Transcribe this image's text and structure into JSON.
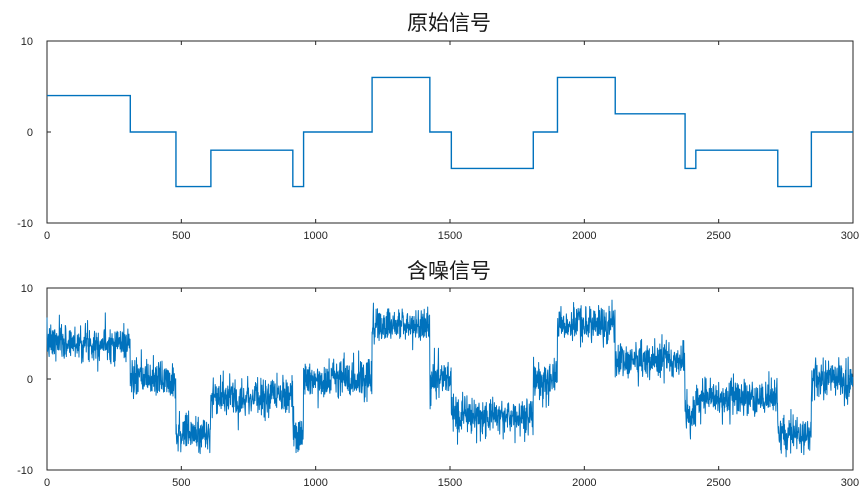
{
  "colors": {
    "line": "#0072BD",
    "axis": "#262626",
    "background": "#ffffff"
  },
  "chart_data": [
    {
      "type": "line",
      "title": "原始信号",
      "xlabel": "",
      "ylabel": "",
      "xlim": [
        0,
        3000
      ],
      "ylim": [
        -10,
        10
      ],
      "xticks": [
        0,
        500,
        1000,
        1500,
        2000,
        2500,
        3000
      ],
      "xtick_labels": [
        "0",
        "500",
        "1000",
        "1500",
        "2000",
        "2500",
        "3000"
      ],
      "yticks": [
        -10,
        0,
        10
      ],
      "ytick_labels": [
        "-10",
        "0",
        "10"
      ],
      "grid": false,
      "series": [
        {
          "style": "step",
          "segments": [
            {
              "x0": 0,
              "x1": 310,
              "y": 4
            },
            {
              "x0": 310,
              "x1": 480,
              "y": 0
            },
            {
              "x0": 480,
              "x1": 610,
              "y": -6
            },
            {
              "x0": 610,
              "x1": 915,
              "y": -2
            },
            {
              "x0": 915,
              "x1": 955,
              "y": -6
            },
            {
              "x0": 955,
              "x1": 1210,
              "y": 0
            },
            {
              "x0": 1210,
              "x1": 1425,
              "y": 6
            },
            {
              "x0": 1425,
              "x1": 1505,
              "y": 0
            },
            {
              "x0": 1505,
              "x1": 1810,
              "y": -4
            },
            {
              "x0": 1810,
              "x1": 1900,
              "y": 0
            },
            {
              "x0": 1900,
              "x1": 2115,
              "y": 6
            },
            {
              "x0": 2115,
              "x1": 2375,
              "y": 2
            },
            {
              "x0": 2375,
              "x1": 2415,
              "y": -4
            },
            {
              "x0": 2415,
              "x1": 2720,
              "y": -2
            },
            {
              "x0": 2720,
              "x1": 2845,
              "y": -6
            },
            {
              "x0": 2845,
              "x1": 3000,
              "y": 0
            }
          ]
        }
      ]
    },
    {
      "type": "line",
      "title": "含噪信号",
      "xlabel": "",
      "ylabel": "",
      "xlim": [
        0,
        3000
      ],
      "ylim": [
        -10,
        10
      ],
      "xticks": [
        0,
        500,
        1000,
        1500,
        2000,
        2500,
        3000
      ],
      "xtick_labels": [
        "0",
        "500",
        "1000",
        "1500",
        "2000",
        "2500",
        "3000"
      ],
      "yticks": [
        -10,
        0,
        10
      ],
      "ytick_labels": [
        "-10",
        "0",
        "10"
      ],
      "grid": false,
      "series": [
        {
          "style": "noisy-step",
          "noise_std": 1.0,
          "segments": [
            {
              "x0": 0,
              "x1": 310,
              "y": 4
            },
            {
              "x0": 310,
              "x1": 480,
              "y": 0
            },
            {
              "x0": 480,
              "x1": 610,
              "y": -6
            },
            {
              "x0": 610,
              "x1": 915,
              "y": -2
            },
            {
              "x0": 915,
              "x1": 955,
              "y": -6
            },
            {
              "x0": 955,
              "x1": 1210,
              "y": 0
            },
            {
              "x0": 1210,
              "x1": 1425,
              "y": 6
            },
            {
              "x0": 1425,
              "x1": 1505,
              "y": 0
            },
            {
              "x0": 1505,
              "x1": 1810,
              "y": -4
            },
            {
              "x0": 1810,
              "x1": 1900,
              "y": 0
            },
            {
              "x0": 1900,
              "x1": 2115,
              "y": 6
            },
            {
              "x0": 2115,
              "x1": 2375,
              "y": 2
            },
            {
              "x0": 2375,
              "x1": 2415,
              "y": -4
            },
            {
              "x0": 2415,
              "x1": 2720,
              "y": -2
            },
            {
              "x0": 2720,
              "x1": 2845,
              "y": -6
            },
            {
              "x0": 2845,
              "x1": 3000,
              "y": 0
            }
          ]
        }
      ]
    }
  ]
}
